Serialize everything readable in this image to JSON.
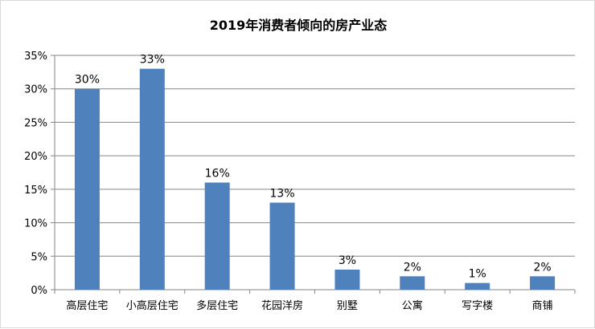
{
  "chart_data": {
    "type": "bar",
    "title": "2019年消费者倾向的房产业态",
    "categories": [
      "高层住宅",
      "小高层住宅",
      "多层住宅",
      "花园洋房",
      "别墅",
      "公寓",
      "写字楼",
      "商铺"
    ],
    "values": [
      30,
      33,
      16,
      13,
      3,
      2,
      1,
      2
    ],
    "data_labels": [
      "30%",
      "33%",
      "16%",
      "13%",
      "3%",
      "2%",
      "1%",
      "2%"
    ],
    "y_ticks": [
      "0%",
      "5%",
      "10%",
      "15%",
      "20%",
      "25%",
      "30%",
      "35%"
    ],
    "ylim": [
      0,
      35
    ],
    "ystep": 5,
    "grid": true,
    "legend": "none",
    "colors": {
      "bar": "#4F81BD",
      "grid": "#868686",
      "axis": "#868686"
    }
  }
}
